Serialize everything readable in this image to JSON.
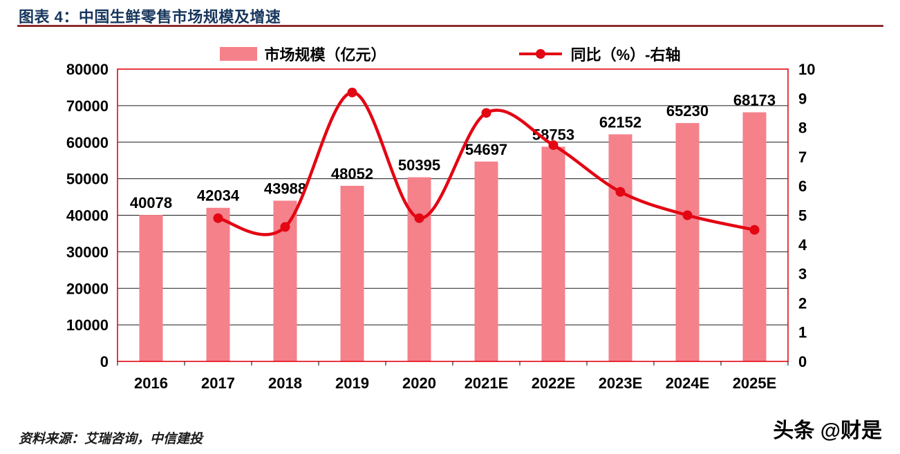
{
  "header": {
    "title": "图表 4：中国生鲜零售市场规模及增速"
  },
  "legend": {
    "bar_label": "市场规模（亿元）",
    "line_label": "同比（%）-右轴"
  },
  "chart_data": {
    "type": "bar",
    "subtype": "bar+line-combo",
    "title": "中国生鲜零售市场规模及增速",
    "categories": [
      "2016",
      "2017",
      "2018",
      "2019",
      "2020",
      "2021E",
      "2022E",
      "2023E",
      "2024E",
      "2025E"
    ],
    "series": [
      {
        "name": "市场规模（亿元）",
        "type": "bar",
        "axis": "left",
        "values": [
          40078,
          42034,
          43988,
          48052,
          50395,
          54697,
          58753,
          62152,
          65230,
          68173
        ],
        "data_labels": [
          "40078",
          "42034",
          "43988",
          "48052",
          "50395",
          "54697",
          "58753",
          "62152",
          "65230",
          "68173"
        ]
      },
      {
        "name": "同比（%）-右轴",
        "type": "line",
        "axis": "right",
        "values": [
          null,
          4.9,
          4.6,
          9.2,
          4.9,
          8.5,
          7.4,
          5.8,
          5.0,
          4.5
        ]
      }
    ],
    "left_axis": {
      "min": 0,
      "max": 80000,
      "step": 10000,
      "ticks": [
        "80000",
        "70000",
        "60000",
        "50000",
        "40000",
        "30000",
        "20000",
        "10000",
        "0"
      ]
    },
    "right_axis": {
      "min": 0,
      "max": 10,
      "step": 1,
      "ticks": [
        "10",
        "9",
        "8",
        "7",
        "6",
        "5",
        "4",
        "3",
        "2",
        "1",
        "0"
      ]
    },
    "grid": "horizontal-on",
    "legend_position": "top",
    "colors": {
      "bar": "#F5818B",
      "line": "#E30613",
      "border": "#E30613",
      "grid": "#1a1a1a",
      "title": "#17365D",
      "rule": "#8E2B2B"
    }
  },
  "footer": {
    "source": "资料来源：艾瑞咨询，中信建投",
    "watermark": "头条 @财是"
  }
}
